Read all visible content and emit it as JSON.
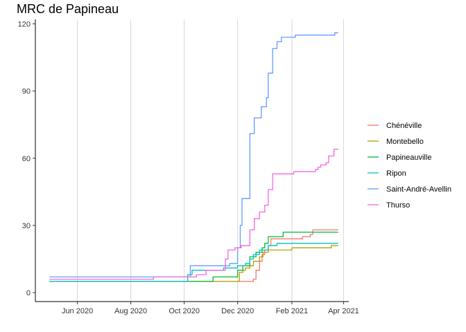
{
  "chart_data": {
    "type": "line",
    "title": "MRC de Papineau",
    "xlabel": "",
    "ylabel": "",
    "x_type": "date",
    "xlim": [
      "2020-04-14",
      "2021-04-07"
    ],
    "ylim": [
      -4,
      122
    ],
    "y_ticks": [
      0,
      30,
      60,
      90,
      120
    ],
    "x_ticks": [
      {
        "date": "2020-06-01",
        "label": "Jun 2020"
      },
      {
        "date": "2020-08-01",
        "label": "Aug 2020"
      },
      {
        "date": "2020-10-01",
        "label": "Oct 2020"
      },
      {
        "date": "2020-12-01",
        "label": "Dec 2020"
      },
      {
        "date": "2021-02-01",
        "label": "Feb 2021"
      },
      {
        "date": "2021-04-01",
        "label": "Apr 2021"
      }
    ],
    "grid": "vertical-major",
    "legend_position": "right",
    "series": [
      {
        "name": "Chénéville",
        "color": "#F8766D",
        "step": true,
        "points": [
          [
            "2020-04-30",
            5
          ],
          [
            "2020-12-17",
            5
          ],
          [
            "2020-12-19",
            6
          ],
          [
            "2020-12-22",
            10
          ],
          [
            "2020-12-26",
            14
          ],
          [
            "2020-12-29",
            17
          ],
          [
            "2021-01-01",
            19
          ],
          [
            "2021-01-05",
            21
          ],
          [
            "2021-01-08",
            24
          ],
          [
            "2021-01-31",
            24
          ],
          [
            "2021-02-13",
            25
          ],
          [
            "2021-02-22",
            26
          ],
          [
            "2021-02-25",
            28
          ],
          [
            "2021-03-26",
            28
          ]
        ]
      },
      {
        "name": "Montebello",
        "color": "#B79F00",
        "step": true,
        "points": [
          [
            "2020-04-30",
            5
          ],
          [
            "2020-12-01",
            5
          ],
          [
            "2020-12-03",
            9
          ],
          [
            "2020-12-07",
            10
          ],
          [
            "2020-12-10",
            11
          ],
          [
            "2020-12-15",
            12
          ],
          [
            "2020-12-19",
            14
          ],
          [
            "2020-12-26",
            16
          ],
          [
            "2020-12-30",
            18
          ],
          [
            "2021-01-05",
            19
          ],
          [
            "2021-02-01",
            20
          ],
          [
            "2021-03-18",
            21
          ],
          [
            "2021-03-26",
            21
          ]
        ]
      },
      {
        "name": "Papineauville",
        "color": "#00BA38",
        "step": true,
        "points": [
          [
            "2020-04-30",
            5
          ],
          [
            "2020-10-29",
            5
          ],
          [
            "2020-11-03",
            7
          ],
          [
            "2020-12-01",
            10
          ],
          [
            "2020-12-07",
            12
          ],
          [
            "2020-12-15",
            16
          ],
          [
            "2020-12-22",
            18
          ],
          [
            "2020-12-29",
            20
          ],
          [
            "2021-01-01",
            22
          ],
          [
            "2021-01-05",
            25
          ],
          [
            "2021-01-22",
            27
          ],
          [
            "2021-03-26",
            27
          ]
        ]
      },
      {
        "name": "Ripon",
        "color": "#00BFC4",
        "step": true,
        "points": [
          [
            "2020-04-30",
            5
          ],
          [
            "2020-10-01",
            5
          ],
          [
            "2020-10-05",
            8
          ],
          [
            "2020-10-10",
            10
          ],
          [
            "2020-10-26",
            10
          ],
          [
            "2020-11-15",
            11
          ],
          [
            "2020-12-01",
            12
          ],
          [
            "2020-12-10",
            13
          ],
          [
            "2020-12-15",
            15
          ],
          [
            "2020-12-19",
            17
          ],
          [
            "2020-12-26",
            19
          ],
          [
            "2021-01-05",
            21
          ],
          [
            "2021-01-15",
            22
          ],
          [
            "2021-03-26",
            22
          ]
        ]
      },
      {
        "name": "Saint-André-Avellin",
        "color": "#619CFF",
        "step": true,
        "points": [
          [
            "2020-04-30",
            7
          ],
          [
            "2020-10-01",
            7
          ],
          [
            "2020-10-08",
            12
          ],
          [
            "2020-11-15",
            12
          ],
          [
            "2020-11-22",
            13
          ],
          [
            "2020-12-01",
            20
          ],
          [
            "2020-12-04",
            30
          ],
          [
            "2020-12-06",
            42
          ],
          [
            "2020-12-13",
            42
          ],
          [
            "2020-12-15",
            71
          ],
          [
            "2020-12-20",
            78
          ],
          [
            "2020-12-28",
            83
          ],
          [
            "2021-01-03",
            87
          ],
          [
            "2021-01-05",
            98
          ],
          [
            "2021-01-10",
            109
          ],
          [
            "2021-01-15",
            112
          ],
          [
            "2021-01-20",
            114
          ],
          [
            "2021-02-01",
            114
          ],
          [
            "2021-02-05",
            115
          ],
          [
            "2021-03-22",
            116
          ],
          [
            "2021-03-26",
            116
          ]
        ]
      },
      {
        "name": "Thurso",
        "color": "#F564E3",
        "step": true,
        "points": [
          [
            "2020-04-30",
            6
          ],
          [
            "2020-08-20",
            6
          ],
          [
            "2020-08-27",
            7
          ],
          [
            "2020-10-08",
            7
          ],
          [
            "2020-10-15",
            8
          ],
          [
            "2020-10-26",
            10
          ],
          [
            "2020-11-10",
            10
          ],
          [
            "2020-11-17",
            15
          ],
          [
            "2020-11-20",
            19
          ],
          [
            "2020-11-28",
            20
          ],
          [
            "2020-12-05",
            21
          ],
          [
            "2020-12-15",
            28
          ],
          [
            "2020-12-20",
            33
          ],
          [
            "2020-12-26",
            36
          ],
          [
            "2021-01-01",
            39
          ],
          [
            "2021-01-05",
            46
          ],
          [
            "2021-01-10",
            53
          ],
          [
            "2021-01-31",
            53
          ],
          [
            "2021-02-03",
            54
          ],
          [
            "2021-02-28",
            55
          ],
          [
            "2021-03-03",
            56
          ],
          [
            "2021-03-06",
            57
          ],
          [
            "2021-03-12",
            58
          ],
          [
            "2021-03-15",
            61
          ],
          [
            "2021-03-21",
            64
          ],
          [
            "2021-03-26",
            64
          ]
        ]
      }
    ]
  }
}
